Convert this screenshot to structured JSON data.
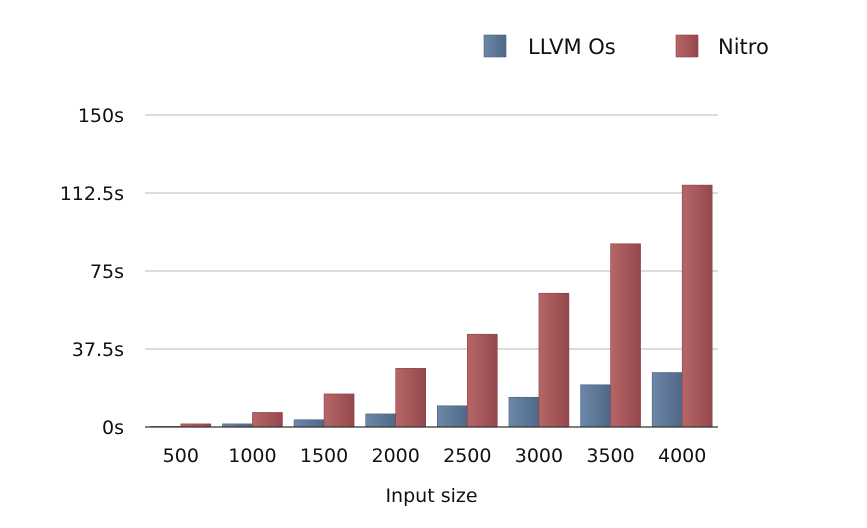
{
  "chart_data": {
    "type": "bar",
    "title": "",
    "xlabel": "Input size",
    "ylabel": "",
    "categories": [
      "500",
      "1000",
      "1500",
      "2000",
      "2500",
      "3000",
      "3500",
      "4000"
    ],
    "series": [
      {
        "name": "LLVM Os",
        "color": "#5b7596",
        "values": [
          0.3,
          1.5,
          3.5,
          6.3,
          10.2,
          14.3,
          20.3,
          26.2
        ]
      },
      {
        "name": "Nitro",
        "color": "#a35558",
        "values": [
          1.5,
          7.0,
          15.9,
          28.2,
          44.6,
          64.3,
          88.1,
          116.3
        ]
      }
    ],
    "ylim": [
      0,
      150
    ],
    "yticks": [
      0,
      37.5,
      75,
      112.5,
      150
    ],
    "ytick_labels": [
      "0s",
      "37.5s",
      "75s",
      "112.5s",
      "150s"
    ],
    "grid": true,
    "legend_position": "top-right"
  }
}
